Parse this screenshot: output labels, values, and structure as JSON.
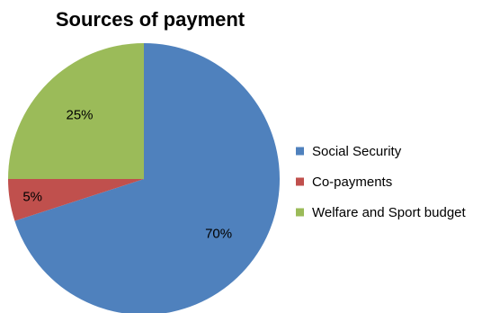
{
  "chart_data": {
    "type": "pie",
    "title": "Sources of payment",
    "categories": [
      "Social Security",
      "Co-payments",
      "Welfare and Sport budget"
    ],
    "values": [
      70,
      5,
      25
    ],
    "data_labels": [
      "70%",
      "5%",
      "25%"
    ],
    "colors": [
      "#4F81BD",
      "#C0504D",
      "#9BBB59"
    ],
    "start_angle_deg": 0,
    "direction": "clockwise",
    "legend_position": "right"
  }
}
